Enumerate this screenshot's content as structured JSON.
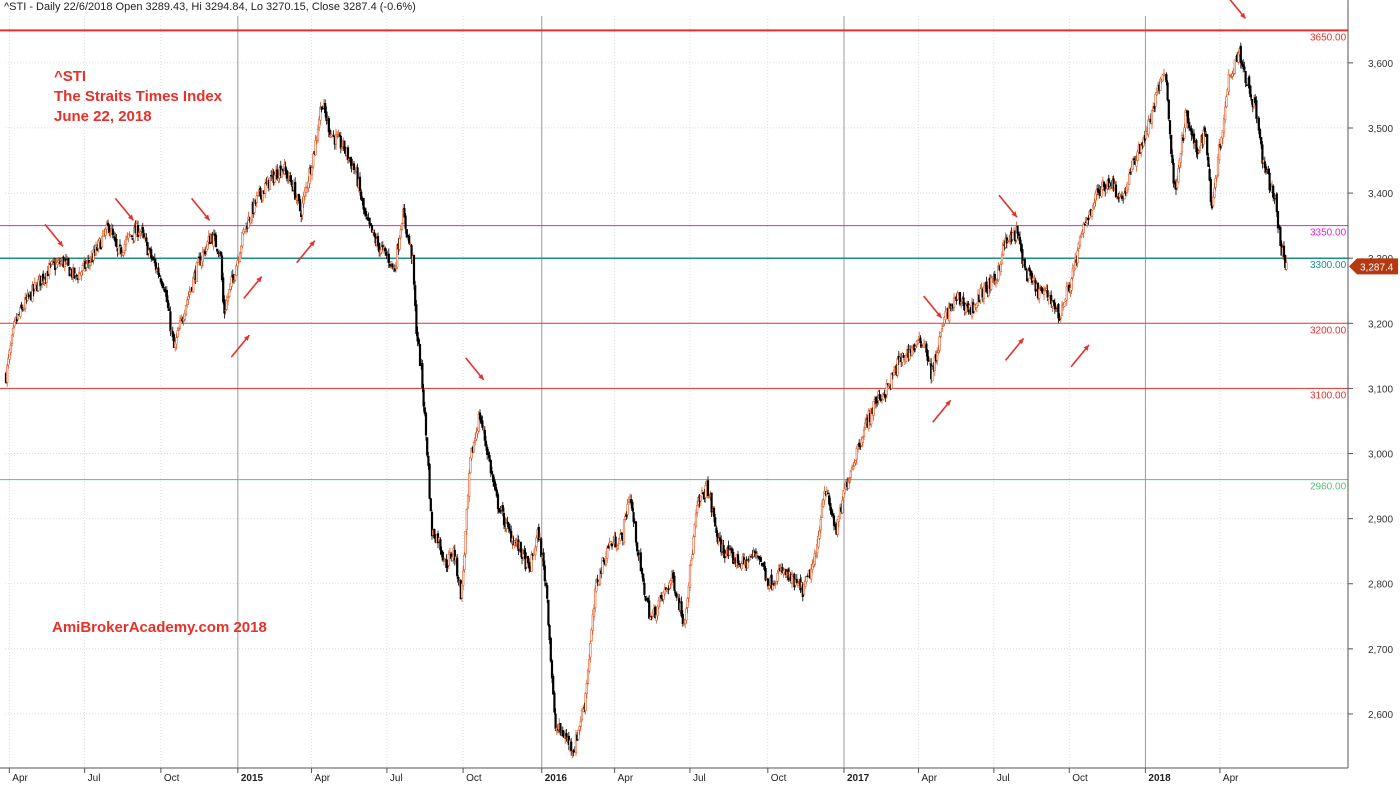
{
  "header": {
    "info": "^STI - Daily 22/6/2018 Open 3289.43, Hi 3294.84, Lo 3270.15, Close 3287.4 (-0.6%)"
  },
  "title_block": {
    "line1": "^STI",
    "line2": "The Straits Times Index",
    "line3": "June 22, 2018"
  },
  "watermark": "AmiBrokerAcademy.com  2018",
  "colors": {
    "up_candle": "#d9531e",
    "down_candle": "#000000",
    "resistance": "#e8302a",
    "magenta": "#e020e0",
    "teal": "#1a8f86",
    "green": "#5cbf7a",
    "grid": "#c8c8c8",
    "price_tag": "#b5380f"
  },
  "chart_data": {
    "type": "candlestick",
    "symbol": "^STI",
    "y_axis": {
      "min": 2517,
      "max": 3672,
      "ticks": [
        2600,
        2700,
        2800,
        2900,
        3000,
        3100,
        3200,
        3300,
        3400,
        3500,
        3600
      ],
      "tick_labels": [
        "2,600",
        "2,700",
        "2,800",
        "2,900",
        "3,000",
        "3,100",
        "3,200",
        "3,300",
        "3,400",
        "3,500",
        "3,600"
      ],
      "position": "right"
    },
    "x_axis": {
      "start": "2014-03-28",
      "end": "2018-06-22",
      "labels": [
        {
          "date": "2014-04-01",
          "label": "Apr",
          "bold": false
        },
        {
          "date": "2014-07-01",
          "label": "Jul",
          "bold": false
        },
        {
          "date": "2014-10-01",
          "label": "Oct",
          "bold": false
        },
        {
          "date": "2015-01-02",
          "label": "2015",
          "bold": true
        },
        {
          "date": "2015-04-01",
          "label": "Apr",
          "bold": false
        },
        {
          "date": "2015-07-01",
          "label": "Jul",
          "bold": false
        },
        {
          "date": "2015-10-01",
          "label": "Oct",
          "bold": false
        },
        {
          "date": "2016-01-04",
          "label": "2016",
          "bold": true
        },
        {
          "date": "2016-04-01",
          "label": "Apr",
          "bold": false
        },
        {
          "date": "2016-07-01",
          "label": "Jul",
          "bold": false
        },
        {
          "date": "2016-10-03",
          "label": "Oct",
          "bold": false
        },
        {
          "date": "2017-01-03",
          "label": "2017",
          "bold": true
        },
        {
          "date": "2017-04-03",
          "label": "Apr",
          "bold": false
        },
        {
          "date": "2017-07-03",
          "label": "Jul",
          "bold": false
        },
        {
          "date": "2017-10-02",
          "label": "Oct",
          "bold": false
        },
        {
          "date": "2018-01-02",
          "label": "2018",
          "bold": true
        },
        {
          "date": "2018-04-02",
          "label": "Apr",
          "bold": false
        }
      ]
    },
    "price_path": [
      [
        "2014-03-28",
        3120
      ],
      [
        "2014-04-08",
        3200
      ],
      [
        "2014-04-20",
        3230
      ],
      [
        "2014-05-05",
        3260
      ],
      [
        "2014-05-20",
        3285
      ],
      [
        "2014-06-05",
        3295
      ],
      [
        "2014-06-20",
        3270
      ],
      [
        "2014-07-10",
        3300
      ],
      [
        "2014-07-31",
        3350
      ],
      [
        "2014-08-10",
        3305
      ],
      [
        "2014-08-25",
        3335
      ],
      [
        "2014-09-05",
        3345
      ],
      [
        "2014-09-20",
        3300
      ],
      [
        "2014-10-05",
        3260
      ],
      [
        "2014-10-17",
        3160
      ],
      [
        "2014-10-31",
        3230
      ],
      [
        "2014-11-15",
        3290
      ],
      [
        "2014-12-01",
        3335
      ],
      [
        "2014-12-12",
        3310
      ],
      [
        "2014-12-16",
        3215
      ],
      [
        "2014-12-31",
        3290
      ],
      [
        "2015-01-10",
        3345
      ],
      [
        "2015-01-25",
        3390
      ],
      [
        "2015-02-10",
        3420
      ],
      [
        "2015-02-25",
        3440
      ],
      [
        "2015-03-10",
        3410
      ],
      [
        "2015-03-19",
        3370
      ],
      [
        "2015-04-05",
        3470
      ],
      [
        "2015-04-13",
        3540
      ],
      [
        "2015-04-25",
        3490
      ],
      [
        "2015-05-10",
        3470
      ],
      [
        "2015-05-25",
        3430
      ],
      [
        "2015-06-05",
        3360
      ],
      [
        "2015-06-20",
        3320
      ],
      [
        "2015-07-03",
        3300
      ],
      [
        "2015-07-10",
        3280
      ],
      [
        "2015-07-20",
        3370
      ],
      [
        "2015-08-01",
        3300
      ],
      [
        "2015-08-05",
        3200
      ],
      [
        "2015-08-12",
        3120
      ],
      [
        "2015-08-20",
        2980
      ],
      [
        "2015-08-24",
        2880
      ],
      [
        "2015-09-01",
        2870
      ],
      [
        "2015-09-10",
        2830
      ],
      [
        "2015-09-20",
        2850
      ],
      [
        "2015-09-29",
        2780
      ],
      [
        "2015-10-10",
        2990
      ],
      [
        "2015-10-21",
        3060
      ],
      [
        "2015-10-31",
        3000
      ],
      [
        "2015-11-10",
        2930
      ],
      [
        "2015-11-25",
        2880
      ],
      [
        "2015-12-10",
        2850
      ],
      [
        "2015-12-20",
        2820
      ],
      [
        "2015-12-31",
        2880
      ],
      [
        "2016-01-10",
        2790
      ],
      [
        "2016-01-20",
        2580
      ],
      [
        "2016-01-30",
        2570
      ],
      [
        "2016-02-12",
        2545
      ],
      [
        "2016-02-25",
        2620
      ],
      [
        "2016-03-10",
        2800
      ],
      [
        "2016-03-25",
        2860
      ],
      [
        "2016-04-10",
        2870
      ],
      [
        "2016-04-19",
        2940
      ],
      [
        "2016-05-05",
        2800
      ],
      [
        "2016-05-15",
        2745
      ],
      [
        "2016-05-25",
        2770
      ],
      [
        "2016-06-10",
        2810
      ],
      [
        "2016-06-24",
        2740
      ],
      [
        "2016-07-10",
        2920
      ],
      [
        "2016-07-22",
        2950
      ],
      [
        "2016-08-05",
        2860
      ],
      [
        "2016-08-20",
        2840
      ],
      [
        "2016-09-05",
        2830
      ],
      [
        "2016-09-20",
        2850
      ],
      [
        "2016-10-05",
        2800
      ],
      [
        "2016-10-20",
        2820
      ],
      [
        "2016-11-05",
        2800
      ],
      [
        "2016-11-15",
        2790
      ],
      [
        "2016-11-30",
        2840
      ],
      [
        "2016-12-10",
        2950
      ],
      [
        "2016-12-25",
        2880
      ],
      [
        "2017-01-05",
        2950
      ],
      [
        "2017-01-25",
        3030
      ],
      [
        "2017-02-10",
        3080
      ],
      [
        "2017-02-25",
        3100
      ],
      [
        "2017-03-10",
        3140
      ],
      [
        "2017-03-25",
        3160
      ],
      [
        "2017-04-10",
        3175
      ],
      [
        "2017-04-19",
        3120
      ],
      [
        "2017-05-05",
        3210
      ],
      [
        "2017-05-20",
        3240
      ],
      [
        "2017-06-05",
        3220
      ],
      [
        "2017-06-20",
        3250
      ],
      [
        "2017-07-05",
        3265
      ],
      [
        "2017-07-15",
        3320
      ],
      [
        "2017-07-31",
        3340
      ],
      [
        "2017-08-10",
        3280
      ],
      [
        "2017-08-25",
        3250
      ],
      [
        "2017-09-10",
        3240
      ],
      [
        "2017-09-20",
        3210
      ],
      [
        "2017-10-05",
        3270
      ],
      [
        "2017-10-20",
        3350
      ],
      [
        "2017-11-05",
        3400
      ],
      [
        "2017-11-20",
        3420
      ],
      [
        "2017-12-05",
        3390
      ],
      [
        "2017-12-20",
        3450
      ],
      [
        "2018-01-05",
        3500
      ],
      [
        "2018-01-20",
        3570
      ],
      [
        "2018-01-26",
        3590
      ],
      [
        "2018-02-06",
        3400
      ],
      [
        "2018-02-20",
        3520
      ],
      [
        "2018-03-05",
        3460
      ],
      [
        "2018-03-15",
        3500
      ],
      [
        "2018-03-23",
        3380
      ],
      [
        "2018-04-05",
        3500
      ],
      [
        "2018-04-13",
        3580
      ],
      [
        "2018-04-25",
        3620
      ],
      [
        "2018-05-05",
        3570
      ],
      [
        "2018-05-15",
        3530
      ],
      [
        "2018-05-25",
        3440
      ],
      [
        "2018-06-08",
        3390
      ],
      [
        "2018-06-14",
        3320
      ],
      [
        "2018-06-22",
        3287.4
      ]
    ],
    "horizontal_lines": [
      {
        "value": 3650,
        "label": "3650.00",
        "color": "#e8302a",
        "width": 2
      },
      {
        "value": 3350,
        "label": "3350.00",
        "color": "#e020e0",
        "width": 1
      },
      {
        "value": 3300,
        "label": "3300.00",
        "color": "#1a8f86",
        "width": 1.5
      },
      {
        "value": 3200,
        "label": "3200.00",
        "color": "#e8302a",
        "width": 1
      },
      {
        "value": 3100,
        "label": "3100.00",
        "color": "#e8302a",
        "width": 1
      },
      {
        "value": 2960,
        "label": "2960.00",
        "color": "#5cbf7a",
        "width": 1
      }
    ],
    "last_price": {
      "value": 3287.4,
      "label": "3,287.4"
    },
    "arrows": [
      {
        "date": "2014-05-25",
        "value": 3335,
        "dir": "down"
      },
      {
        "date": "2014-08-18",
        "value": 3375,
        "dir": "down"
      },
      {
        "date": "2014-11-18",
        "value": 3375,
        "dir": "down"
      },
      {
        "date": "2015-01-20",
        "value": 3255,
        "dir": "up"
      },
      {
        "date": "2015-01-05",
        "value": 3165,
        "dir": "up"
      },
      {
        "date": "2015-03-25",
        "value": 3310,
        "dir": "up"
      },
      {
        "date": "2015-10-15",
        "value": 3130,
        "dir": "down"
      },
      {
        "date": "2017-04-20",
        "value": 3225,
        "dir": "down"
      },
      {
        "date": "2017-05-01",
        "value": 3065,
        "dir": "up"
      },
      {
        "date": "2017-07-20",
        "value": 3380,
        "dir": "down"
      },
      {
        "date": "2017-07-28",
        "value": 3160,
        "dir": "up"
      },
      {
        "date": "2017-10-15",
        "value": 3150,
        "dir": "up"
      },
      {
        "date": "2018-04-22",
        "value": 3685,
        "dir": "down"
      }
    ]
  }
}
